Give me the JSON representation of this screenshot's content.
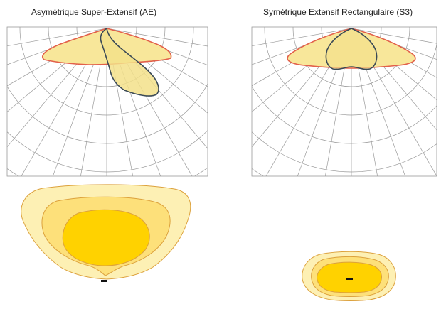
{
  "panels": {
    "left": {
      "title": "Asymétrique Super-Extensif (AE)"
    },
    "right": {
      "title": "Symétrique Extensif Rectangulaire (S3)"
    }
  },
  "colors": {
    "grid": "#9a9a9a",
    "curve_fill": "#f8e79a",
    "red_line": "#e2604a",
    "dark_line": "#3b4a56",
    "iso_outer": "#fdf0b4",
    "iso_mid": "#fde07a",
    "iso_inner": "#ffd200",
    "iso_line": "#dca13c",
    "marker": "#111111"
  }
}
